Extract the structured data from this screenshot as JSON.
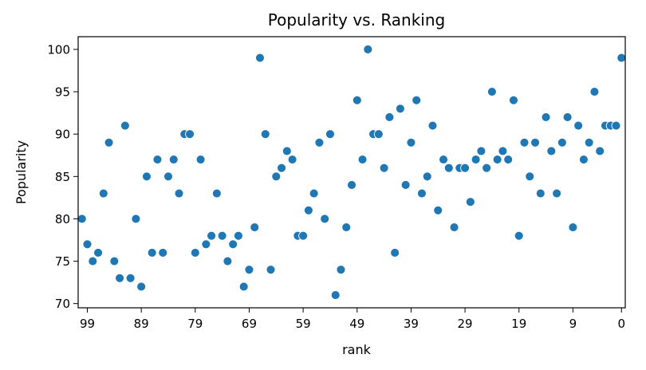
{
  "chart_data": {
    "type": "scatter",
    "title": "Popularity vs. Ranking",
    "xlabel": "rank",
    "ylabel": "Popularity",
    "x_inverted": true,
    "xlim": [
      100.7,
      -0.7
    ],
    "ylim": [
      69.5,
      101.5
    ],
    "xticks": [
      99,
      89,
      79,
      69,
      59,
      49,
      39,
      29,
      19,
      9,
      0
    ],
    "yticks": [
      70,
      75,
      80,
      85,
      90,
      95,
      100
    ],
    "grid": false,
    "marker_color": "#1f77b4",
    "points": [
      {
        "x": 100,
        "y": 80
      },
      {
        "x": 99,
        "y": 77
      },
      {
        "x": 98,
        "y": 75
      },
      {
        "x": 97,
        "y": 76
      },
      {
        "x": 96,
        "y": 83
      },
      {
        "x": 95,
        "y": 89
      },
      {
        "x": 94,
        "y": 75
      },
      {
        "x": 93,
        "y": 73
      },
      {
        "x": 92,
        "y": 91
      },
      {
        "x": 91,
        "y": 73
      },
      {
        "x": 90,
        "y": 80
      },
      {
        "x": 89,
        "y": 72
      },
      {
        "x": 88,
        "y": 85
      },
      {
        "x": 87,
        "y": 76
      },
      {
        "x": 86,
        "y": 87
      },
      {
        "x": 85,
        "y": 76
      },
      {
        "x": 84,
        "y": 85
      },
      {
        "x": 83,
        "y": 87
      },
      {
        "x": 82,
        "y": 83
      },
      {
        "x": 81,
        "y": 90
      },
      {
        "x": 80,
        "y": 90
      },
      {
        "x": 79,
        "y": 76
      },
      {
        "x": 78,
        "y": 87
      },
      {
        "x": 77,
        "y": 77
      },
      {
        "x": 76,
        "y": 78
      },
      {
        "x": 75,
        "y": 83
      },
      {
        "x": 74,
        "y": 78
      },
      {
        "x": 73,
        "y": 75
      },
      {
        "x": 72,
        "y": 77
      },
      {
        "x": 71,
        "y": 78
      },
      {
        "x": 70,
        "y": 72
      },
      {
        "x": 69,
        "y": 74
      },
      {
        "x": 68,
        "y": 79
      },
      {
        "x": 67,
        "y": 99
      },
      {
        "x": 66,
        "y": 90
      },
      {
        "x": 65,
        "y": 74
      },
      {
        "x": 64,
        "y": 85
      },
      {
        "x": 63,
        "y": 86
      },
      {
        "x": 62,
        "y": 88
      },
      {
        "x": 61,
        "y": 87
      },
      {
        "x": 60,
        "y": 78
      },
      {
        "x": 59,
        "y": 78
      },
      {
        "x": 58,
        "y": 81
      },
      {
        "x": 57,
        "y": 83
      },
      {
        "x": 56,
        "y": 89
      },
      {
        "x": 55,
        "y": 80
      },
      {
        "x": 54,
        "y": 90
      },
      {
        "x": 53,
        "y": 71
      },
      {
        "x": 52,
        "y": 74
      },
      {
        "x": 51,
        "y": 79
      },
      {
        "x": 50,
        "y": 84
      },
      {
        "x": 49,
        "y": 94
      },
      {
        "x": 48,
        "y": 87
      },
      {
        "x": 47,
        "y": 100
      },
      {
        "x": 46,
        "y": 90
      },
      {
        "x": 45,
        "y": 90
      },
      {
        "x": 44,
        "y": 86
      },
      {
        "x": 43,
        "y": 92
      },
      {
        "x": 42,
        "y": 76
      },
      {
        "x": 41,
        "y": 93
      },
      {
        "x": 40,
        "y": 84
      },
      {
        "x": 39,
        "y": 89
      },
      {
        "x": 38,
        "y": 94
      },
      {
        "x": 37,
        "y": 83
      },
      {
        "x": 36,
        "y": 85
      },
      {
        "x": 35,
        "y": 91
      },
      {
        "x": 34,
        "y": 81
      },
      {
        "x": 33,
        "y": 87
      },
      {
        "x": 32,
        "y": 86
      },
      {
        "x": 31,
        "y": 79
      },
      {
        "x": 30,
        "y": 86
      },
      {
        "x": 29,
        "y": 86
      },
      {
        "x": 28,
        "y": 82
      },
      {
        "x": 27,
        "y": 87
      },
      {
        "x": 26,
        "y": 88
      },
      {
        "x": 25,
        "y": 86
      },
      {
        "x": 24,
        "y": 95
      },
      {
        "x": 23,
        "y": 87
      },
      {
        "x": 22,
        "y": 88
      },
      {
        "x": 21,
        "y": 87
      },
      {
        "x": 20,
        "y": 94
      },
      {
        "x": 19,
        "y": 78
      },
      {
        "x": 18,
        "y": 89
      },
      {
        "x": 17,
        "y": 85
      },
      {
        "x": 16,
        "y": 89
      },
      {
        "x": 15,
        "y": 83
      },
      {
        "x": 14,
        "y": 92
      },
      {
        "x": 13,
        "y": 88
      },
      {
        "x": 12,
        "y": 83
      },
      {
        "x": 11,
        "y": 89
      },
      {
        "x": 10,
        "y": 92
      },
      {
        "x": 9,
        "y": 79
      },
      {
        "x": 8,
        "y": 91
      },
      {
        "x": 7,
        "y": 87
      },
      {
        "x": 6,
        "y": 89
      },
      {
        "x": 5,
        "y": 95
      },
      {
        "x": 4,
        "y": 88
      },
      {
        "x": 3,
        "y": 91
      },
      {
        "x": 2,
        "y": 91
      },
      {
        "x": 1,
        "y": 91
      },
      {
        "x": 0,
        "y": 99
      }
    ]
  }
}
